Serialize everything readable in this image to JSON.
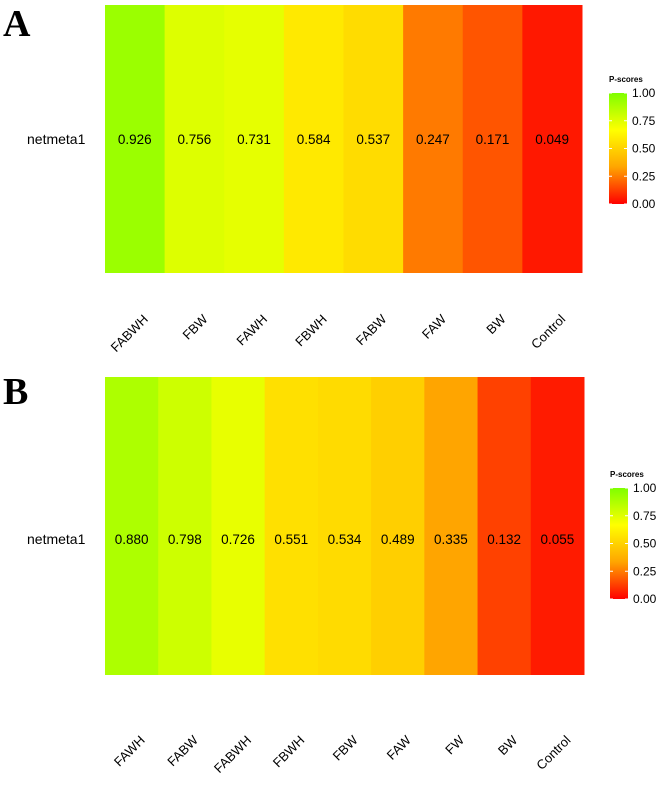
{
  "chart_data": [
    {
      "type": "heatmap",
      "panel": "A",
      "row": "netmeta1",
      "categories": [
        "FABWH",
        "FBW",
        "FAWH",
        "FBWH",
        "FABW",
        "FAW",
        "BW",
        "Control"
      ],
      "values": [
        0.926,
        0.756,
        0.731,
        0.584,
        0.537,
        0.247,
        0.171,
        0.049
      ],
      "labels": [
        "0.926",
        "0.756",
        "0.731",
        "0.584",
        "0.537",
        "0.247",
        "0.171",
        "0.049"
      ],
      "legend": {
        "title": "P-scores",
        "ticks": [
          "1.00",
          "0.75",
          "0.50",
          "0.25",
          "0.00"
        ],
        "range": [
          0,
          1
        ],
        "colors": [
          "#ff0000",
          "#ffa500",
          "#ffff00",
          "#7fff00"
        ]
      }
    },
    {
      "type": "heatmap",
      "panel": "B",
      "row": "netmeta1",
      "categories": [
        "FAWH",
        "FABW",
        "FABWH",
        "FBWH",
        "FBW",
        "FAW",
        "FW",
        "BW",
        "Control"
      ],
      "values": [
        0.88,
        0.798,
        0.726,
        0.551,
        0.534,
        0.489,
        0.335,
        0.132,
        0.055
      ],
      "labels": [
        "0.880",
        "0.798",
        "0.726",
        "0.551",
        "0.534",
        "0.489",
        "0.335",
        "0.132",
        "0.055"
      ],
      "legend": {
        "title": "P-scores",
        "ticks": [
          "1.00",
          "0.75",
          "0.50",
          "0.25",
          "0.00"
        ],
        "range": [
          0,
          1
        ],
        "colors": [
          "#ff0000",
          "#ffa500",
          "#ffff00",
          "#7fff00"
        ]
      }
    }
  ]
}
